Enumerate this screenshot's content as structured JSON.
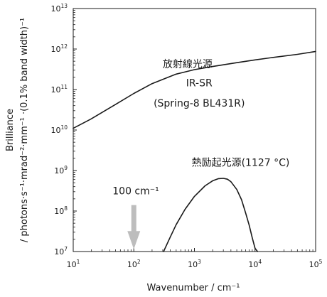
{
  "chart_data": {
    "type": "line",
    "xscale": "log",
    "yscale": "log",
    "xlim": [
      10,
      100000
    ],
    "ylim": [
      10000000,
      10000000000000
    ],
    "xlabel": "Wavenumber / cm⁻¹",
    "ylabel_line1": "Brilliance",
    "ylabel_line2": "/ photons·s⁻¹·mrad⁻²·mm⁻¹ ·(0.1% band width)⁻¹",
    "x_ticks": [
      {
        "value": 10,
        "base": "10",
        "exp": "1"
      },
      {
        "value": 100,
        "base": "10",
        "exp": "2"
      },
      {
        "value": 1000,
        "base": "10",
        "exp": "3"
      },
      {
        "value": 10000,
        "base": "10",
        "exp": "4"
      },
      {
        "value": 100000,
        "base": "10",
        "exp": "5"
      }
    ],
    "y_ticks": [
      {
        "value": 10000000,
        "base": "10",
        "exp": "7"
      },
      {
        "value": 100000000,
        "base": "10",
        "exp": "8"
      },
      {
        "value": 1000000000,
        "base": "10",
        "exp": "9"
      },
      {
        "value": 10000000000,
        "base": "10",
        "exp": "10"
      },
      {
        "value": 100000000000,
        "base": "10",
        "exp": "11"
      },
      {
        "value": 1000000000000,
        "base": "10",
        "exp": "12"
      },
      {
        "value": 10000000000000,
        "base": "10",
        "exp": "13"
      }
    ],
    "series": [
      {
        "name": "放射線光源",
        "color": "#1a1a1a",
        "x": [
          10,
          20,
          50,
          100,
          200,
          500,
          1000,
          2000,
          5000,
          10000,
          20000,
          50000,
          100000
        ],
        "y": [
          11000000000.0,
          19000000000.0,
          43000000000.0,
          80000000000.0,
          140000000000.0,
          240000000000.0,
          310000000000.0,
          370000000000.0,
          460000000000.0,
          540000000000.0,
          620000000000.0,
          740000000000.0,
          870000000000.0
        ]
      },
      {
        "name": "熱励起光源(1127 °C)",
        "color": "#1a1a1a",
        "x": [
          310,
          400,
          500,
          700,
          1000,
          1500,
          2000,
          2500,
          3000,
          3500,
          4000,
          5000,
          6000,
          7000,
          8000,
          9000,
          10000,
          11000
        ],
        "y": [
          10000000.0,
          23000000.0,
          46000000.0,
          110000000.0,
          230000000.0,
          420000000.0,
          560000000.0,
          630000000.0,
          640000000.0,
          610000000.0,
          530000000.0,
          340000000.0,
          190000000.0,
          90000000.0,
          45000000.0,
          22000000.0,
          12000000.0,
          10000000.0
        ]
      }
    ],
    "annotations": [
      {
        "text": "放射線光源",
        "x": 300,
        "y": 350000000000.0
      },
      {
        "text": "IR-SR",
        "x": 1200,
        "y": 120000000000.0
      },
      {
        "text": "(Spring-8 BL431R)",
        "x": 1200,
        "y": 38000000000.0
      },
      {
        "text": "熱励起光源(1127 °C)",
        "x": 900,
        "y": 1300000000.0
      },
      {
        "text": "100 cm⁻¹",
        "x": 100,
        "y": 260000000.0
      }
    ],
    "marker": {
      "type": "arrow-down",
      "x": 100,
      "label": "100 cm⁻¹",
      "color": "#bdbdbd"
    },
    "grid": false,
    "legend": "none"
  }
}
